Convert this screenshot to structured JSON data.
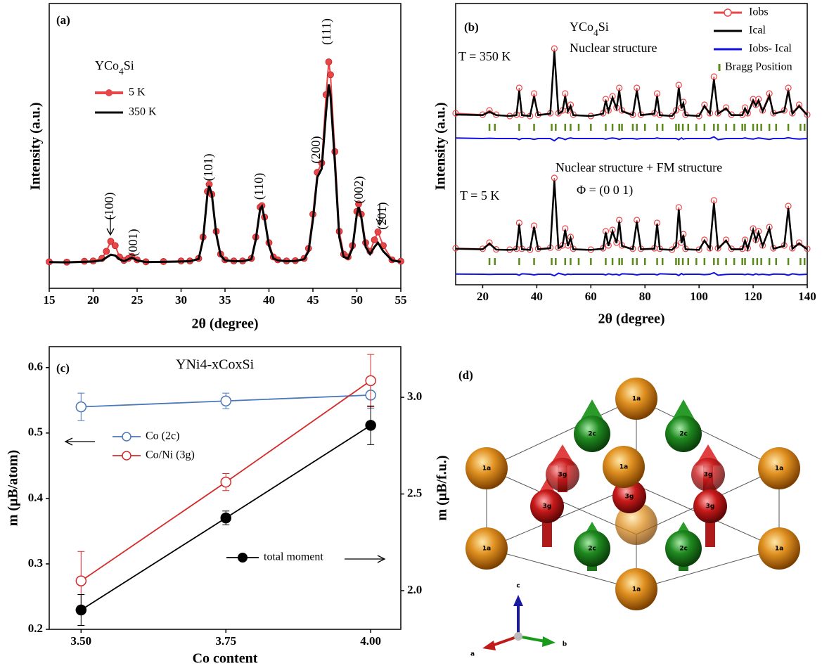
{
  "chart_data": [
    {
      "type": "line",
      "panel": "(a)",
      "annotation": "YCo4Si",
      "xlabel": "2θ (degree)",
      "ylabel": "Intensity (a.u.)",
      "x": [
        15,
        17,
        19,
        20,
        21,
        21.5,
        22,
        22.5,
        23,
        23.5,
        24,
        24.4,
        25,
        26,
        28,
        30,
        31,
        32,
        32.5,
        33,
        33.2,
        33.5,
        34,
        34.5,
        35,
        36,
        37,
        38,
        38.5,
        39,
        39.2,
        39.5,
        40,
        40.5,
        41,
        42,
        43,
        44,
        44.5,
        45,
        45.5,
        46,
        46.5,
        46.8,
        47,
        47.5,
        48,
        48.5,
        49,
        49.5,
        50,
        50.2,
        50.5,
        51,
        51.5,
        52,
        52.4,
        53,
        54,
        55
      ],
      "series": [
        {
          "name": "5 K",
          "color": "#e8474a",
          "values": [
            9.3,
            9.2,
            9.5,
            9.6,
            10.5,
            13,
            16.5,
            15,
            11,
            9.8,
            10.5,
            11.2,
            10,
            9.3,
            9.4,
            9.6,
            9.6,
            10.5,
            18,
            34,
            36.5,
            33,
            20,
            12,
            10,
            9.6,
            9.6,
            10.5,
            18,
            28.5,
            29,
            25,
            16,
            11,
            10,
            9.6,
            9.7,
            10.5,
            14,
            26,
            40.7,
            44,
            68,
            79.5,
            75,
            48,
            20,
            12,
            11,
            15,
            27,
            29.6,
            26,
            16,
            13,
            17,
            19.8,
            15,
            10,
            9.5
          ]
        },
        {
          "name": "350 K",
          "color": "#000000",
          "values": [
            9.2,
            9.1,
            9.3,
            9.4,
            9.8,
            10.8,
            11.8,
            11.5,
            10.2,
            9.5,
            10.2,
            10.8,
            9.8,
            9.2,
            9.3,
            9.4,
            9.5,
            10.3,
            17,
            33,
            36,
            33,
            19,
            11.5,
            9.8,
            9.5,
            9.5,
            10.2,
            17,
            28,
            28.8,
            24.5,
            15,
            10.5,
            9.8,
            9.5,
            9.6,
            10.2,
            13,
            24,
            39,
            42,
            62,
            71.6,
            68,
            44,
            18,
            11,
            10.5,
            14,
            26,
            28.5,
            25,
            14.5,
            12,
            14.5,
            16,
            13,
            9.8,
            9.3
          ]
        }
      ],
      "xlim": [
        15,
        55
      ],
      "ylim": [
        0,
        100
      ],
      "xticks": [
        15,
        20,
        25,
        30,
        35,
        40,
        45,
        50,
        55
      ],
      "peak_labels": [
        "(100)",
        "(001)",
        "(101)",
        "(110)",
        "(200)",
        "(111)",
        "(002)",
        "(201)"
      ]
    },
    {
      "type": "rietveld",
      "panel": "(b)",
      "annotation": "YCo4Si",
      "xlabel": "2θ (degree)",
      "ylabel": "Intensity (a.u.)",
      "series": [
        {
          "name": "Iobs",
          "color": "#e8474a"
        },
        {
          "name": "Ical",
          "color": "#000000"
        },
        {
          "name": "Iobs- Ical",
          "color": "#1010e0"
        },
        {
          "name": "Bragg Position",
          "color": "#5a8a1a"
        }
      ],
      "x": [
        10,
        20,
        22.5,
        25,
        30,
        32.5,
        33.5,
        34.5,
        37.5,
        39,
        40.5,
        45,
        46.5,
        48,
        49.5,
        50.5,
        51.5,
        52.5,
        53.5,
        60,
        64.5,
        65.5,
        66.5,
        68,
        69.5,
        70.5,
        71.5,
        75.5,
        77,
        78.5,
        83.5,
        84.5,
        85.5,
        90,
        91.5,
        92.5,
        93.5,
        94.2,
        95,
        100,
        102,
        104,
        105.5,
        107,
        110,
        112,
        116,
        117,
        118,
        120,
        121,
        122,
        123.5,
        126,
        127.5,
        131.5,
        133,
        134.5,
        137,
        140
      ],
      "panels": [
        {
          "temperature": "T = 350 K",
          "structure": "Nuclear structure",
          "bragg_level": 56,
          "obs": [
            61,
            60.5,
            62,
            60.5,
            60,
            60.5,
            70,
            60.5,
            60,
            68,
            60.5,
            61,
            84,
            61,
            62,
            68,
            62,
            64,
            60.5,
            60,
            61,
            66,
            62,
            67,
            63,
            70,
            62,
            60.5,
            70,
            60.5,
            61,
            68,
            60.5,
            60,
            62,
            71,
            63,
            65,
            60.5,
            60,
            64,
            61,
            74,
            61,
            63,
            60.5,
            60.5,
            63,
            61,
            66,
            64,
            66,
            62,
            68,
            61,
            62,
            70,
            61,
            64,
            60.5
          ],
          "cal": [
            60.5,
            60.3,
            61.5,
            60.3,
            60,
            60.3,
            69,
            60.3,
            60,
            67,
            60.3,
            60.8,
            83,
            60.8,
            61.7,
            67,
            61.7,
            63.5,
            60.3,
            60,
            60.8,
            65.5,
            61.7,
            66.5,
            62.7,
            69,
            61.7,
            60.3,
            69,
            60.3,
            60.8,
            67,
            60.3,
            60,
            61.7,
            70,
            62.7,
            64.5,
            60.3,
            60,
            63.5,
            60.8,
            73,
            60.8,
            62.7,
            60.3,
            60.3,
            62.7,
            60.8,
            65.5,
            63.7,
            65.5,
            61.7,
            67,
            60.8,
            61.7,
            69,
            60.8,
            63.5,
            60.3
          ],
          "diff": [
            52.2,
            52,
            52.1,
            52,
            52,
            52,
            51.6,
            52,
            52,
            51.7,
            52,
            52,
            51.2,
            52.3,
            52,
            51.6,
            52,
            52.2,
            52,
            52,
            52,
            51.8,
            52,
            52.2,
            52,
            51.7,
            52,
            52,
            51.8,
            52,
            52,
            52.2,
            52,
            52,
            52,
            51.6,
            52.2,
            51.8,
            52,
            52,
            52,
            52,
            52.6,
            51.6,
            52,
            52,
            52,
            52.2,
            52,
            51.8,
            52,
            52.2,
            52,
            51.7,
            52,
            52,
            52.3,
            52,
            51.8,
            52
          ]
        },
        {
          "temperature": "T = 5 K",
          "structure": "Nuclear structure + FM structure",
          "propagation": "Φ = (0 0 1)",
          "bragg_level": 8.25,
          "obs": [
            13,
            12.8,
            15,
            12.6,
            12.5,
            12.8,
            22,
            12.8,
            12.5,
            21,
            12.8,
            13.2,
            38,
            13.2,
            14,
            20,
            14,
            17,
            12.8,
            12.5,
            13,
            19,
            14,
            19.5,
            15,
            23,
            14,
            12.8,
            23,
            12.8,
            13,
            22,
            12.8,
            12.5,
            14,
            27.5,
            15,
            18,
            12.8,
            12.5,
            16,
            13,
            30,
            13,
            16,
            12.8,
            12.8,
            16,
            13,
            20,
            16,
            19,
            14,
            20.5,
            13,
            14,
            28,
            13,
            15,
            12.8
          ],
          "cal": [
            12.8,
            12.6,
            14.6,
            12.5,
            12.4,
            12.6,
            21.4,
            12.6,
            12.4,
            20.5,
            12.6,
            13,
            37,
            13,
            13.8,
            19.5,
            13.8,
            16.6,
            12.6,
            12.4,
            12.8,
            18.6,
            13.8,
            19,
            14.8,
            22.4,
            13.8,
            12.6,
            22.4,
            12.6,
            12.8,
            21.5,
            12.6,
            12.4,
            13.8,
            26.8,
            14.8,
            17.6,
            12.6,
            12.4,
            15.7,
            12.8,
            29,
            12.8,
            15.7,
            12.6,
            12.6,
            15.7,
            12.8,
            19.5,
            15.7,
            18.6,
            13.8,
            20,
            12.8,
            13.8,
            27.2,
            12.8,
            14.7,
            12.6
          ],
          "diff": [
            3.8,
            3.75,
            3.7,
            3.75,
            3.75,
            3.75,
            3.4,
            3.9,
            3.75,
            3.5,
            3.75,
            3.75,
            3.2,
            4.1,
            3.75,
            3.5,
            3.8,
            3.7,
            3.75,
            3.75,
            3.75,
            3.5,
            3.9,
            3.6,
            3.75,
            3.4,
            3.9,
            3.75,
            3.5,
            3.75,
            3.75,
            3.5,
            3.9,
            3.75,
            3.75,
            3.3,
            4,
            3.6,
            3.75,
            3.75,
            3.6,
            3.75,
            4.3,
            3.4,
            3.7,
            3.75,
            3.75,
            3.6,
            3.8,
            3.5,
            3.9,
            3.6,
            3.75,
            3.5,
            3.8,
            3.75,
            3.4,
            3.9,
            3.6,
            3.75
          ]
        }
      ],
      "bragg_positions": [
        22.5,
        24.5,
        33.5,
        39,
        45.5,
        47,
        50.5,
        52.5,
        55.5,
        60,
        65.5,
        68,
        70.5,
        71.5,
        75.5,
        77,
        80,
        84.5,
        86.5,
        91.5,
        92.5,
        94,
        96,
        99,
        102,
        105.5,
        107,
        110,
        113,
        116,
        117,
        120,
        121.5,
        123,
        126,
        128.5,
        133,
        137.5,
        139
      ],
      "xlim": [
        10,
        140
      ],
      "ylim": [
        0,
        100
      ],
      "xticks": [
        20,
        40,
        60,
        80,
        100,
        120,
        140
      ]
    },
    {
      "type": "errorbar",
      "panel": "(c)",
      "annotation": "YNi4-xCoxSi",
      "xlabel": "Co content",
      "ylabel": "m (μB/atom)",
      "y2label": "m (μB/f.u.)",
      "x": [
        3.5,
        3.75,
        4.0
      ],
      "series": [
        {
          "name": "Co (2c)",
          "color": "#4a78b8",
          "values": [
            0.54,
            0.549,
            0.558
          ],
          "errors": [
            0.021,
            0.012,
            0.02
          ],
          "marker": "open"
        },
        {
          "name": "Co/Ni (3g)",
          "color": "#d42a2a",
          "values": [
            0.274,
            0.425,
            0.58
          ],
          "errors": [
            0.045,
            0.013,
            0.04
          ],
          "marker": "open"
        },
        {
          "name": "total moment",
          "color": "#000000",
          "values": [
            1.9,
            2.376,
            2.855
          ],
          "errors": [
            0.08,
            0.036,
            0.1
          ],
          "marker": "filled",
          "axis": "y2"
        }
      ],
      "xlim": [
        3.445,
        4.052
      ],
      "ylim": [
        0.2,
        0.632
      ],
      "y2lim": [
        1.8,
        3.262
      ],
      "xticks": [
        {
          "value": 3.5,
          "label": "3.50"
        },
        {
          "value": 3.75,
          "label": "3.75"
        },
        {
          "value": 4.0,
          "label": "4.00"
        }
      ],
      "yticks": [
        0.2,
        0.3,
        0.4,
        0.5,
        0.6
      ],
      "y2ticks": [
        {
          "value": 2,
          "label": "2.0"
        },
        {
          "value": 2.5,
          "label": "2.5"
        },
        {
          "value": 3,
          "label": "3.0"
        }
      ]
    }
  ],
  "structure": {
    "panel": "(d)",
    "sites": [
      "1a",
      "2c",
      "3g"
    ],
    "axes": [
      "a",
      "b",
      "c"
    ]
  }
}
